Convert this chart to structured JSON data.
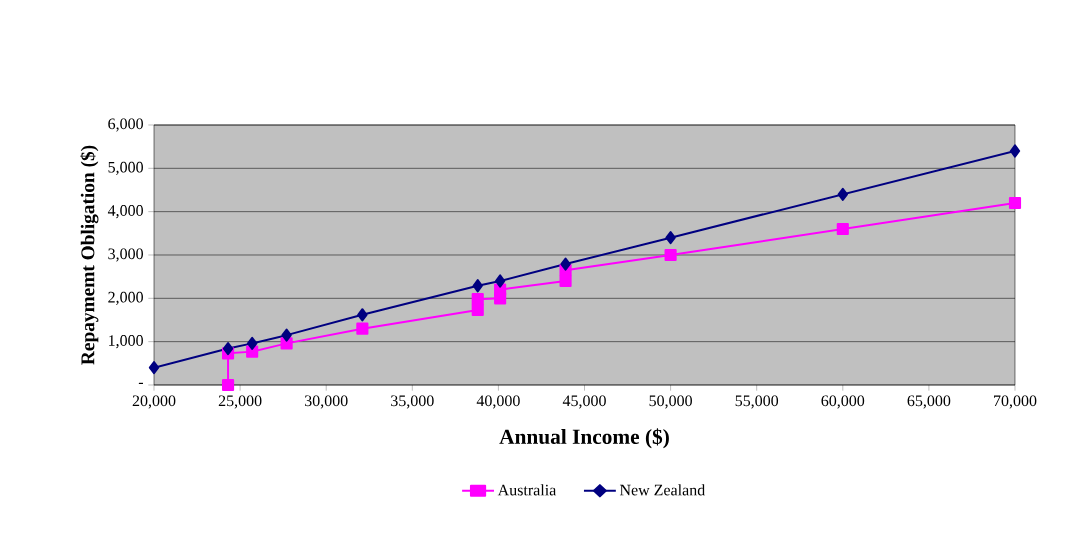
{
  "chart_data": {
    "type": "line",
    "xlabel": "Annual Income ($)",
    "ylabel": "Repaymemt Obligation ($)",
    "xlim": [
      20000,
      70000
    ],
    "xticks": [
      {
        "value": 20000,
        "label": "20,000"
      },
      {
        "value": 25000,
        "label": "25,000"
      },
      {
        "value": 30000,
        "label": "30,000"
      },
      {
        "value": 35000,
        "label": "35,000"
      },
      {
        "value": 40000,
        "label": "40,000"
      },
      {
        "value": 45000,
        "label": "45,000"
      },
      {
        "value": 50000,
        "label": "50,000"
      },
      {
        "value": 55000,
        "label": "55,000"
      },
      {
        "value": 60000,
        "label": "60,000"
      },
      {
        "value": 65000,
        "label": "65,000"
      },
      {
        "value": 70000,
        "label": "70,000"
      }
    ],
    "ylim": [
      0,
      6000
    ],
    "yticks": [
      {
        "value": 0,
        "label": "-"
      },
      {
        "value": 1000,
        "label": "1,000"
      },
      {
        "value": 2000,
        "label": "2,000"
      },
      {
        "value": 3000,
        "label": "3,000"
      },
      {
        "value": 4000,
        "label": "4,000"
      },
      {
        "value": 5000,
        "label": "5,000"
      },
      {
        "value": 6000,
        "label": "6,000"
      }
    ],
    "grid": "y",
    "legend": "bottom",
    "line_style": "solid",
    "series": [
      {
        "name": "Australia",
        "color": "#ff00ff",
        "marker": "square",
        "x": [
          24300,
          24300,
          25700,
          27700,
          32100,
          38800,
          38800,
          40100,
          40100,
          43900,
          43900,
          50000,
          60000,
          70000
        ],
        "values": [
          0,
          730,
          770,
          960,
          1300,
          1730,
          1980,
          2000,
          2200,
          2400,
          2650,
          3000,
          3600,
          4200
        ]
      },
      {
        "name": "New Zealand",
        "color": "#000080",
        "marker": "diamond",
        "x": [
          20000,
          24300,
          25700,
          27700,
          32100,
          38800,
          40100,
          43900,
          50000,
          60000,
          70000
        ],
        "values": [
          400,
          840,
          960,
          1150,
          1620,
          2290,
          2400,
          2790,
          3400,
          4400,
          5400
        ]
      }
    ]
  }
}
